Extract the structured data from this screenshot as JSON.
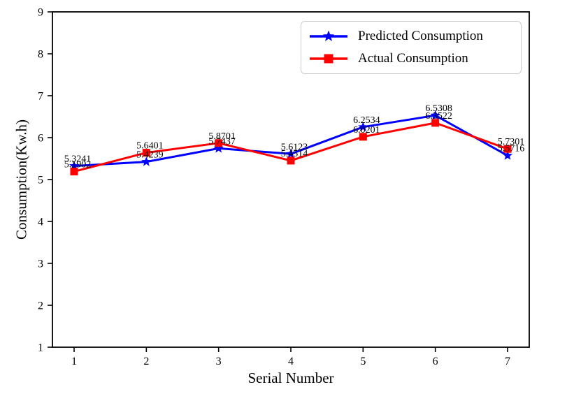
{
  "chart_data": {
    "type": "line",
    "title": "",
    "xlabel": "Serial Number",
    "ylabel": "Consumption(Kw.h)",
    "x": [
      1,
      2,
      3,
      4,
      5,
      6,
      7
    ],
    "xticks": [
      1,
      2,
      3,
      4,
      5,
      6,
      7
    ],
    "yticks": [
      1,
      2,
      3,
      4,
      5,
      6,
      7,
      8,
      9
    ],
    "xlim": [
      0.7,
      7.3
    ],
    "ylim": [
      1,
      9
    ],
    "grid": false,
    "legend_position": "upper right",
    "point_labels_visible": true,
    "axis_color": "#000000",
    "background_color": "#ffffff",
    "series": [
      {
        "name": "Predicted Consumption",
        "color": "#0000ff",
        "marker": "star",
        "values": [
          5.3241,
          5.4239,
          5.7437,
          5.6123,
          6.2534,
          6.5308,
          5.5716
        ],
        "point_labels": [
          "5.3241",
          "5.4239",
          "5.7437",
          "5.6123",
          "6.2534",
          "6.5308",
          "5.5716"
        ]
      },
      {
        "name": "Actual Consumption",
        "color": "#ff0000",
        "marker": "square",
        "values": [
          5.1902,
          5.6401,
          5.8701,
          5.4514,
          6.0201,
          6.3522,
          5.7301
        ],
        "point_labels": [
          "5.1902",
          "5.6401",
          "5.8701",
          "5.4514",
          "6.0201",
          "6.3522",
          "5.7301"
        ]
      }
    ]
  }
}
